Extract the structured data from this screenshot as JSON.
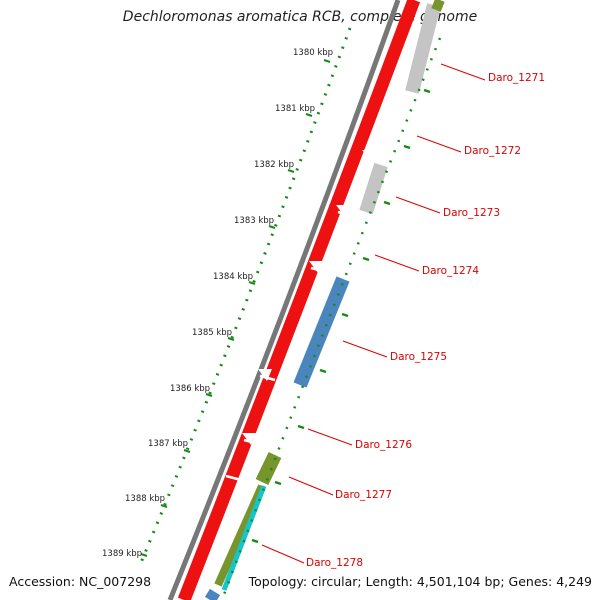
{
  "title": "Dechloromonas aromatica RCB, complete genome",
  "accession": "Accession: NC_007298",
  "summary": "Topology: circular; Length: 4,501,104 bp; Genes: 4,249",
  "colors": {
    "backbone": "#777777",
    "cds_red": "#ee1111",
    "cds_grey": "#c4c4c4",
    "cds_blue": "#4a86bd",
    "cds_olive": "#77952c",
    "cds_cyan": "#16c4cc",
    "tick_dots": "#178a17",
    "gene_label": "#dd0000"
  },
  "ticks": [
    "1380 kbp",
    "1381 kbp",
    "1382 kbp",
    "1383 kbp",
    "1384 kbp",
    "1385 kbp",
    "1386 kbp",
    "1387 kbp",
    "1388 kbp",
    "1389 kbp"
  ],
  "gene_labels": [
    "Daro_1271",
    "Daro_1272",
    "Daro_1273",
    "Daro_1274",
    "Daro_1275",
    "Daro_1276",
    "Daro_1277",
    "Daro_1278"
  ]
}
